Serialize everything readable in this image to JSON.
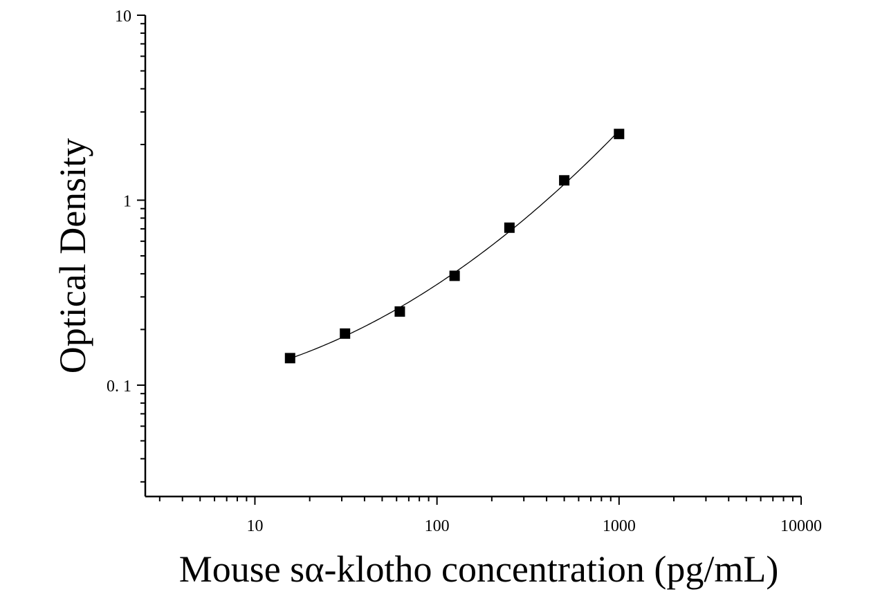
{
  "chart_data": {
    "type": "scatter",
    "xlabel": "Mouse sα-klotho concentration (pg/mL)",
    "ylabel": "Optical Density",
    "x_scale": "log",
    "y_scale": "log",
    "xlim": [
      2.5,
      10000
    ],
    "ylim": [
      0.025,
      10
    ],
    "x_ticks": [
      10,
      100,
      1000,
      10000
    ],
    "x_tick_labels": [
      "10",
      "100",
      "1000",
      "10000"
    ],
    "y_ticks": [
      0.1,
      1,
      10
    ],
    "y_tick_labels": [
      "0. 1",
      "1",
      "10"
    ],
    "grid": false,
    "legend": "none",
    "series": [
      {
        "x": [
          15.6,
          31.25,
          62.5,
          125,
          250,
          500,
          1000
        ],
        "y": [
          0.14,
          0.19,
          0.25,
          0.39,
          0.71,
          1.28,
          2.28
        ],
        "marker": "square",
        "fit_line": true
      }
    ],
    "colors": {
      "marker": "#000000",
      "line": "#000000",
      "axis": "#000000"
    }
  }
}
